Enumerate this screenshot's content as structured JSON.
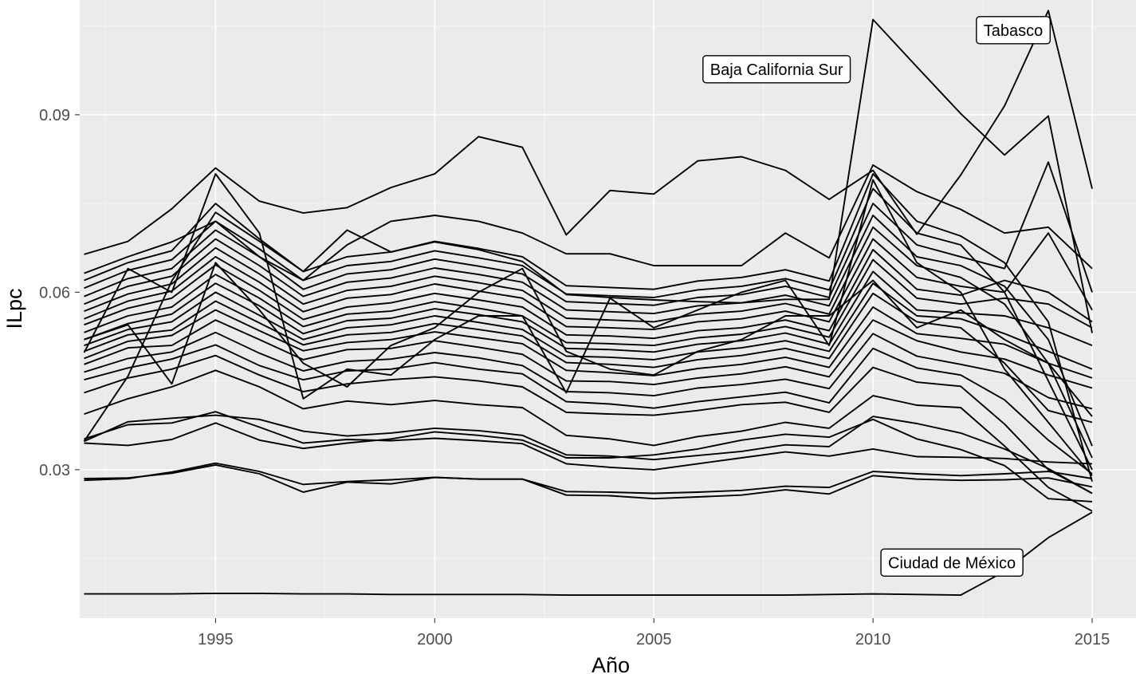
{
  "chart_data": {
    "type": "line",
    "title": "",
    "xlabel": "Año",
    "ylabel": "ILpc",
    "xlim": [
      1991.9,
      2016
    ],
    "ylim": [
      0.0049,
      0.1094
    ],
    "x_ticks": [
      1995,
      2000,
      2005,
      2010,
      2015
    ],
    "x_tick_labels": [
      "1995",
      "2000",
      "2005",
      "2010",
      "2015"
    ],
    "y_ticks": [
      0.03,
      0.06,
      0.09
    ],
    "y_tick_labels": [
      "0.03",
      "0.06",
      "0.09"
    ],
    "grid": true,
    "legend": "none",
    "x": [
      1992,
      1993,
      1994,
      1995,
      1996,
      1997,
      1998,
      1999,
      2000,
      2001,
      2002,
      2003,
      2004,
      2005,
      2006,
      2007,
      2008,
      2009,
      2010,
      2011,
      2012,
      2013,
      2014,
      2015
    ],
    "series": [
      {
        "values": [
          0.0348,
          0.0458,
          0.0619,
          0.0735,
          0.0686,
          0.0635,
          0.0705,
          0.0668,
          0.0685,
          0.0672,
          0.0652,
          0.0596,
          0.0591,
          0.0587,
          0.0584,
          0.0582,
          0.0588,
          0.0588,
          0.1061,
          0.0981,
          0.0902,
          0.0832,
          0.0898,
          0.0531
        ]
      },
      {
        "values": [
          0.0664,
          0.0686,
          0.0741,
          0.081,
          0.0754,
          0.0734,
          0.0743,
          0.0777,
          0.08,
          0.0863,
          0.0845,
          0.0697,
          0.0772,
          0.0766,
          0.0822,
          0.0829,
          0.0806,
          0.0757,
          0.0806,
          0.0698,
          0.0798,
          0.0915,
          0.1076,
          0.0775
        ]
      },
      {
        "values": [
          0.009,
          0.009,
          0.009,
          0.0091,
          0.0091,
          0.009,
          0.009,
          0.0089,
          0.0089,
          0.0089,
          0.0089,
          0.0088,
          0.0088,
          0.0088,
          0.0088,
          0.0088,
          0.0088,
          0.0089,
          0.009,
          0.0089,
          0.0088,
          0.0128,
          0.0185,
          0.0228
        ]
      },
      {
        "values": [
          0.0282,
          0.0285,
          0.0296,
          0.0311,
          0.0297,
          0.0275,
          0.028,
          0.0283,
          0.0287,
          0.0284,
          0.0284,
          0.0263,
          0.0262,
          0.026,
          0.0262,
          0.0265,
          0.0272,
          0.027,
          0.0297,
          0.0293,
          0.029,
          0.0293,
          0.0297,
          0.0285
        ]
      },
      {
        "values": [
          0.0285,
          0.0286,
          0.0294,
          0.0308,
          0.0293,
          0.0262,
          0.0279,
          0.0276,
          0.0287,
          0.0284,
          0.0284,
          0.0257,
          0.0256,
          0.0251,
          0.0254,
          0.0257,
          0.0266,
          0.0259,
          0.029,
          0.0284,
          0.0282,
          0.0283,
          0.0286,
          0.0271
        ]
      },
      {
        "values": [
          0.0348,
          0.0381,
          0.0387,
          0.0392,
          0.0385,
          0.0365,
          0.0357,
          0.0362,
          0.037,
          0.0366,
          0.0358,
          0.0325,
          0.0323,
          0.0317,
          0.0324,
          0.0331,
          0.0342,
          0.0339,
          0.039,
          0.0378,
          0.0362,
          0.0335,
          0.0302,
          0.026
        ]
      },
      {
        "values": [
          0.0352,
          0.0376,
          0.0379,
          0.0398,
          0.0372,
          0.0345,
          0.0351,
          0.0349,
          0.0353,
          0.0349,
          0.0344,
          0.031,
          0.0304,
          0.03,
          0.031,
          0.032,
          0.033,
          0.0323,
          0.0335,
          0.0322,
          0.0321,
          0.0319,
          0.0313,
          0.031
        ]
      },
      {
        "values": [
          0.0345,
          0.0341,
          0.0351,
          0.0379,
          0.035,
          0.0336,
          0.0345,
          0.0352,
          0.0364,
          0.0358,
          0.035,
          0.032,
          0.032,
          0.0325,
          0.0335,
          0.035,
          0.036,
          0.0355,
          0.0385,
          0.0352,
          0.0334,
          0.0307,
          0.0251,
          0.0246
        ]
      },
      {
        "values": [
          0.0394,
          0.042,
          0.044,
          0.0468,
          0.044,
          0.0403,
          0.0416,
          0.041,
          0.0417,
          0.041,
          0.0405,
          0.0358,
          0.0352,
          0.0341,
          0.0356,
          0.0365,
          0.038,
          0.037,
          0.0425,
          0.0409,
          0.0405,
          0.034,
          0.027,
          0.023
        ]
      },
      {
        "values": [
          0.043,
          0.0455,
          0.047,
          0.0493,
          0.046,
          0.0432,
          0.0445,
          0.0452,
          0.0457,
          0.045,
          0.044,
          0.0397,
          0.0394,
          0.0392,
          0.04,
          0.041,
          0.0414,
          0.0397,
          0.0473,
          0.0448,
          0.0441,
          0.0377,
          0.03,
          0.026
        ]
      },
      {
        "values": [
          0.0452,
          0.0472,
          0.0487,
          0.0511,
          0.0476,
          0.0452,
          0.0467,
          0.047,
          0.0481,
          0.047,
          0.0462,
          0.0415,
          0.0411,
          0.0404,
          0.0415,
          0.0423,
          0.0431,
          0.0413,
          0.0505,
          0.0472,
          0.046,
          0.0418,
          0.035,
          0.0293
        ]
      },
      {
        "values": [
          0.0465,
          0.0488,
          0.0499,
          0.0532,
          0.0497,
          0.0467,
          0.0483,
          0.0487,
          0.0498,
          0.0489,
          0.0476,
          0.0432,
          0.043,
          0.0425,
          0.0438,
          0.0444,
          0.0453,
          0.0437,
          0.053,
          0.0492,
          0.0478,
          0.0463,
          0.0422,
          0.0403
        ]
      },
      {
        "values": [
          0.0478,
          0.0506,
          0.051,
          0.0553,
          0.052,
          0.0486,
          0.0503,
          0.0505,
          0.0518,
          0.0507,
          0.0495,
          0.045,
          0.0449,
          0.0444,
          0.0455,
          0.0462,
          0.0474,
          0.0457,
          0.0553,
          0.0518,
          0.0499,
          0.0487,
          0.046,
          0.0438
        ]
      },
      {
        "values": [
          0.0488,
          0.0517,
          0.0527,
          0.057,
          0.0535,
          0.0501,
          0.0515,
          0.052,
          0.0533,
          0.0523,
          0.0513,
          0.0468,
          0.0464,
          0.0459,
          0.0471,
          0.0478,
          0.049,
          0.0473,
          0.0575,
          0.053,
          0.0522,
          0.0512,
          0.048,
          0.0455
        ]
      },
      {
        "values": [
          0.05,
          0.0528,
          0.0536,
          0.0585,
          0.0548,
          0.0511,
          0.0528,
          0.0532,
          0.0547,
          0.0537,
          0.0526,
          0.0481,
          0.0478,
          0.0473,
          0.0486,
          0.0493,
          0.0505,
          0.0488,
          0.0598,
          0.055,
          0.054,
          0.048,
          0.04,
          0.038
        ]
      },
      {
        "values": [
          0.051,
          0.0537,
          0.055,
          0.06,
          0.0561,
          0.052,
          0.054,
          0.0545,
          0.056,
          0.0549,
          0.0537,
          0.0492,
          0.049,
          0.0486,
          0.0499,
          0.0506,
          0.0518,
          0.05,
          0.0615,
          0.056,
          0.0555,
          0.053,
          0.05,
          0.047
        ]
      },
      {
        "values": [
          0.052,
          0.0547,
          0.0563,
          0.0615,
          0.0577,
          0.053,
          0.0552,
          0.0556,
          0.0572,
          0.0562,
          0.055,
          0.0505,
          0.0503,
          0.0499,
          0.0512,
          0.0518,
          0.0531,
          0.0512,
          0.0635,
          0.057,
          0.0565,
          0.056,
          0.054,
          0.051
        ]
      },
      {
        "values": [
          0.0532,
          0.056,
          0.0575,
          0.063,
          0.059,
          0.0542,
          0.0563,
          0.0568,
          0.0584,
          0.0573,
          0.056,
          0.0515,
          0.0513,
          0.051,
          0.0523,
          0.0529,
          0.0542,
          0.0524,
          0.0655,
          0.059,
          0.058,
          0.059,
          0.058,
          0.054
        ]
      },
      {
        "values": [
          0.0545,
          0.0573,
          0.059,
          0.0646,
          0.0603,
          0.0554,
          0.0575,
          0.0582,
          0.0598,
          0.0587,
          0.0575,
          0.0528,
          0.0526,
          0.0522,
          0.0535,
          0.054,
          0.0553,
          0.0535,
          0.0672,
          0.0605,
          0.0595,
          0.062,
          0.06,
          0.055
        ]
      },
      {
        "values": [
          0.0555,
          0.0585,
          0.0602,
          0.066,
          0.0617,
          0.0567,
          0.059,
          0.0596,
          0.0614,
          0.0602,
          0.059,
          0.0542,
          0.054,
          0.0537,
          0.055,
          0.0555,
          0.0568,
          0.055,
          0.069,
          0.0625,
          0.061,
          0.06,
          0.07,
          0.057
        ]
      },
      {
        "values": [
          0.0568,
          0.0597,
          0.0614,
          0.0675,
          0.0631,
          0.058,
          0.0603,
          0.061,
          0.0627,
          0.0616,
          0.0603,
          0.0556,
          0.0553,
          0.055,
          0.0563,
          0.0568,
          0.0581,
          0.0563,
          0.071,
          0.0645,
          0.0625,
          0.058,
          0.048,
          0.039
        ]
      },
      {
        "values": [
          0.058,
          0.061,
          0.0627,
          0.069,
          0.0645,
          0.0593,
          0.0617,
          0.0624,
          0.0641,
          0.063,
          0.0617,
          0.057,
          0.0567,
          0.0564,
          0.0577,
          0.0582,
          0.0595,
          0.0577,
          0.073,
          0.066,
          0.0645,
          0.061,
          0.052,
          0.034
        ]
      },
      {
        "values": [
          0.0593,
          0.0623,
          0.064,
          0.0705,
          0.066,
          0.0605,
          0.0631,
          0.0638,
          0.0656,
          0.0644,
          0.0631,
          0.0584,
          0.0581,
          0.0578,
          0.0591,
          0.0596,
          0.061,
          0.0591,
          0.075,
          0.068,
          0.066,
          0.064,
          0.082,
          0.06
        ]
      },
      {
        "values": [
          0.0607,
          0.0637,
          0.0655,
          0.072,
          0.0673,
          0.062,
          0.0645,
          0.0652,
          0.067,
          0.0658,
          0.0645,
          0.0597,
          0.0594,
          0.0591,
          0.0604,
          0.061,
          0.0623,
          0.0604,
          0.0775,
          0.07,
          0.068,
          0.06,
          0.045,
          0.03
        ]
      },
      {
        "values": [
          0.062,
          0.065,
          0.067,
          0.075,
          0.069,
          0.0635,
          0.066,
          0.0668,
          0.0686,
          0.0674,
          0.066,
          0.0611,
          0.0608,
          0.0605,
          0.0619,
          0.0625,
          0.0638,
          0.0619,
          0.08,
          0.072,
          0.0695,
          0.065,
          0.055,
          0.028
        ]
      },
      {
        "values": [
          0.0632,
          0.066,
          0.0685,
          0.072,
          0.066,
          0.062,
          0.068,
          0.072,
          0.073,
          0.072,
          0.07,
          0.0665,
          0.0665,
          0.0645,
          0.0645,
          0.0645,
          0.07,
          0.0658,
          0.0815,
          0.077,
          0.074,
          0.07,
          0.071,
          0.064
        ]
      },
      {
        "values": [
          0.0498,
          0.064,
          0.06,
          0.08,
          0.07,
          0.042,
          0.047,
          0.046,
          0.052,
          0.056,
          0.056,
          0.043,
          0.059,
          0.054,
          0.057,
          0.06,
          0.062,
          0.051,
          0.079,
          0.065,
          0.06,
          0.047,
          0.038,
          0.029
        ]
      },
      {
        "values": [
          0.052,
          0.0545,
          0.0445,
          0.065,
          0.057,
          0.048,
          0.044,
          0.051,
          0.054,
          0.06,
          0.064,
          0.05,
          0.047,
          0.046,
          0.05,
          0.052,
          0.056,
          0.056,
          0.062,
          0.054,
          0.057,
          0.052,
          0.048,
          0.032
        ]
      }
    ],
    "annotations": [
      {
        "text": "Tabasco",
        "x": 2013.2,
        "y": 0.1043
      },
      {
        "text": "Baja California Sur",
        "x": 2007.8,
        "y": 0.0977
      },
      {
        "text": "Ciudad de México",
        "x": 2011.8,
        "y": 0.0143
      }
    ]
  }
}
